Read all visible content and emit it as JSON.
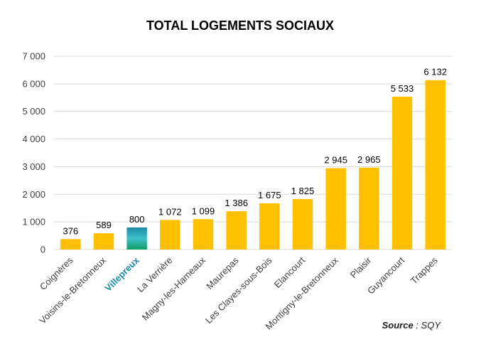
{
  "chart_data": {
    "type": "bar",
    "title": "TOTAL LOGEMENTS SOCIAUX",
    "categories": [
      "Coignères",
      "Voisins-le-Bretonneux",
      "Villepreux",
      "La Verrière",
      "Magny-les-Hameaux",
      "Maurepas",
      "Les Clayes-sous-Bois",
      "Elancourt",
      "Montigny-le-Bretonneux",
      "Plaisir",
      "Guyancourt",
      "Trappes"
    ],
    "values": [
      376,
      589,
      800,
      1072,
      1099,
      1386,
      1675,
      1825,
      2945,
      2965,
      5533,
      6132
    ],
    "value_labels": [
      "376",
      "589",
      "800",
      "1 072",
      "1 099",
      "1 386",
      "1 675",
      "1 825",
      "2 945",
      "2 965",
      "5 533",
      "6 132"
    ],
    "highlight_category": "Villepreux",
    "ylim": [
      0,
      7000
    ],
    "yticks": [
      0,
      1000,
      2000,
      3000,
      4000,
      5000,
      6000,
      7000
    ],
    "ytick_labels": [
      "0",
      "1 000",
      "2 000",
      "3 000",
      "4 000",
      "5 000",
      "6 000",
      "7 000"
    ],
    "xlabel": "",
    "ylabel": "",
    "grid": true,
    "bar_color": "#FFC000",
    "highlight_gradient": [
      "#1A8BA6",
      "#3FC1C9",
      "#0E9E63"
    ]
  },
  "source": {
    "label": "Source",
    "sep": " : ",
    "value": "SQY"
  }
}
